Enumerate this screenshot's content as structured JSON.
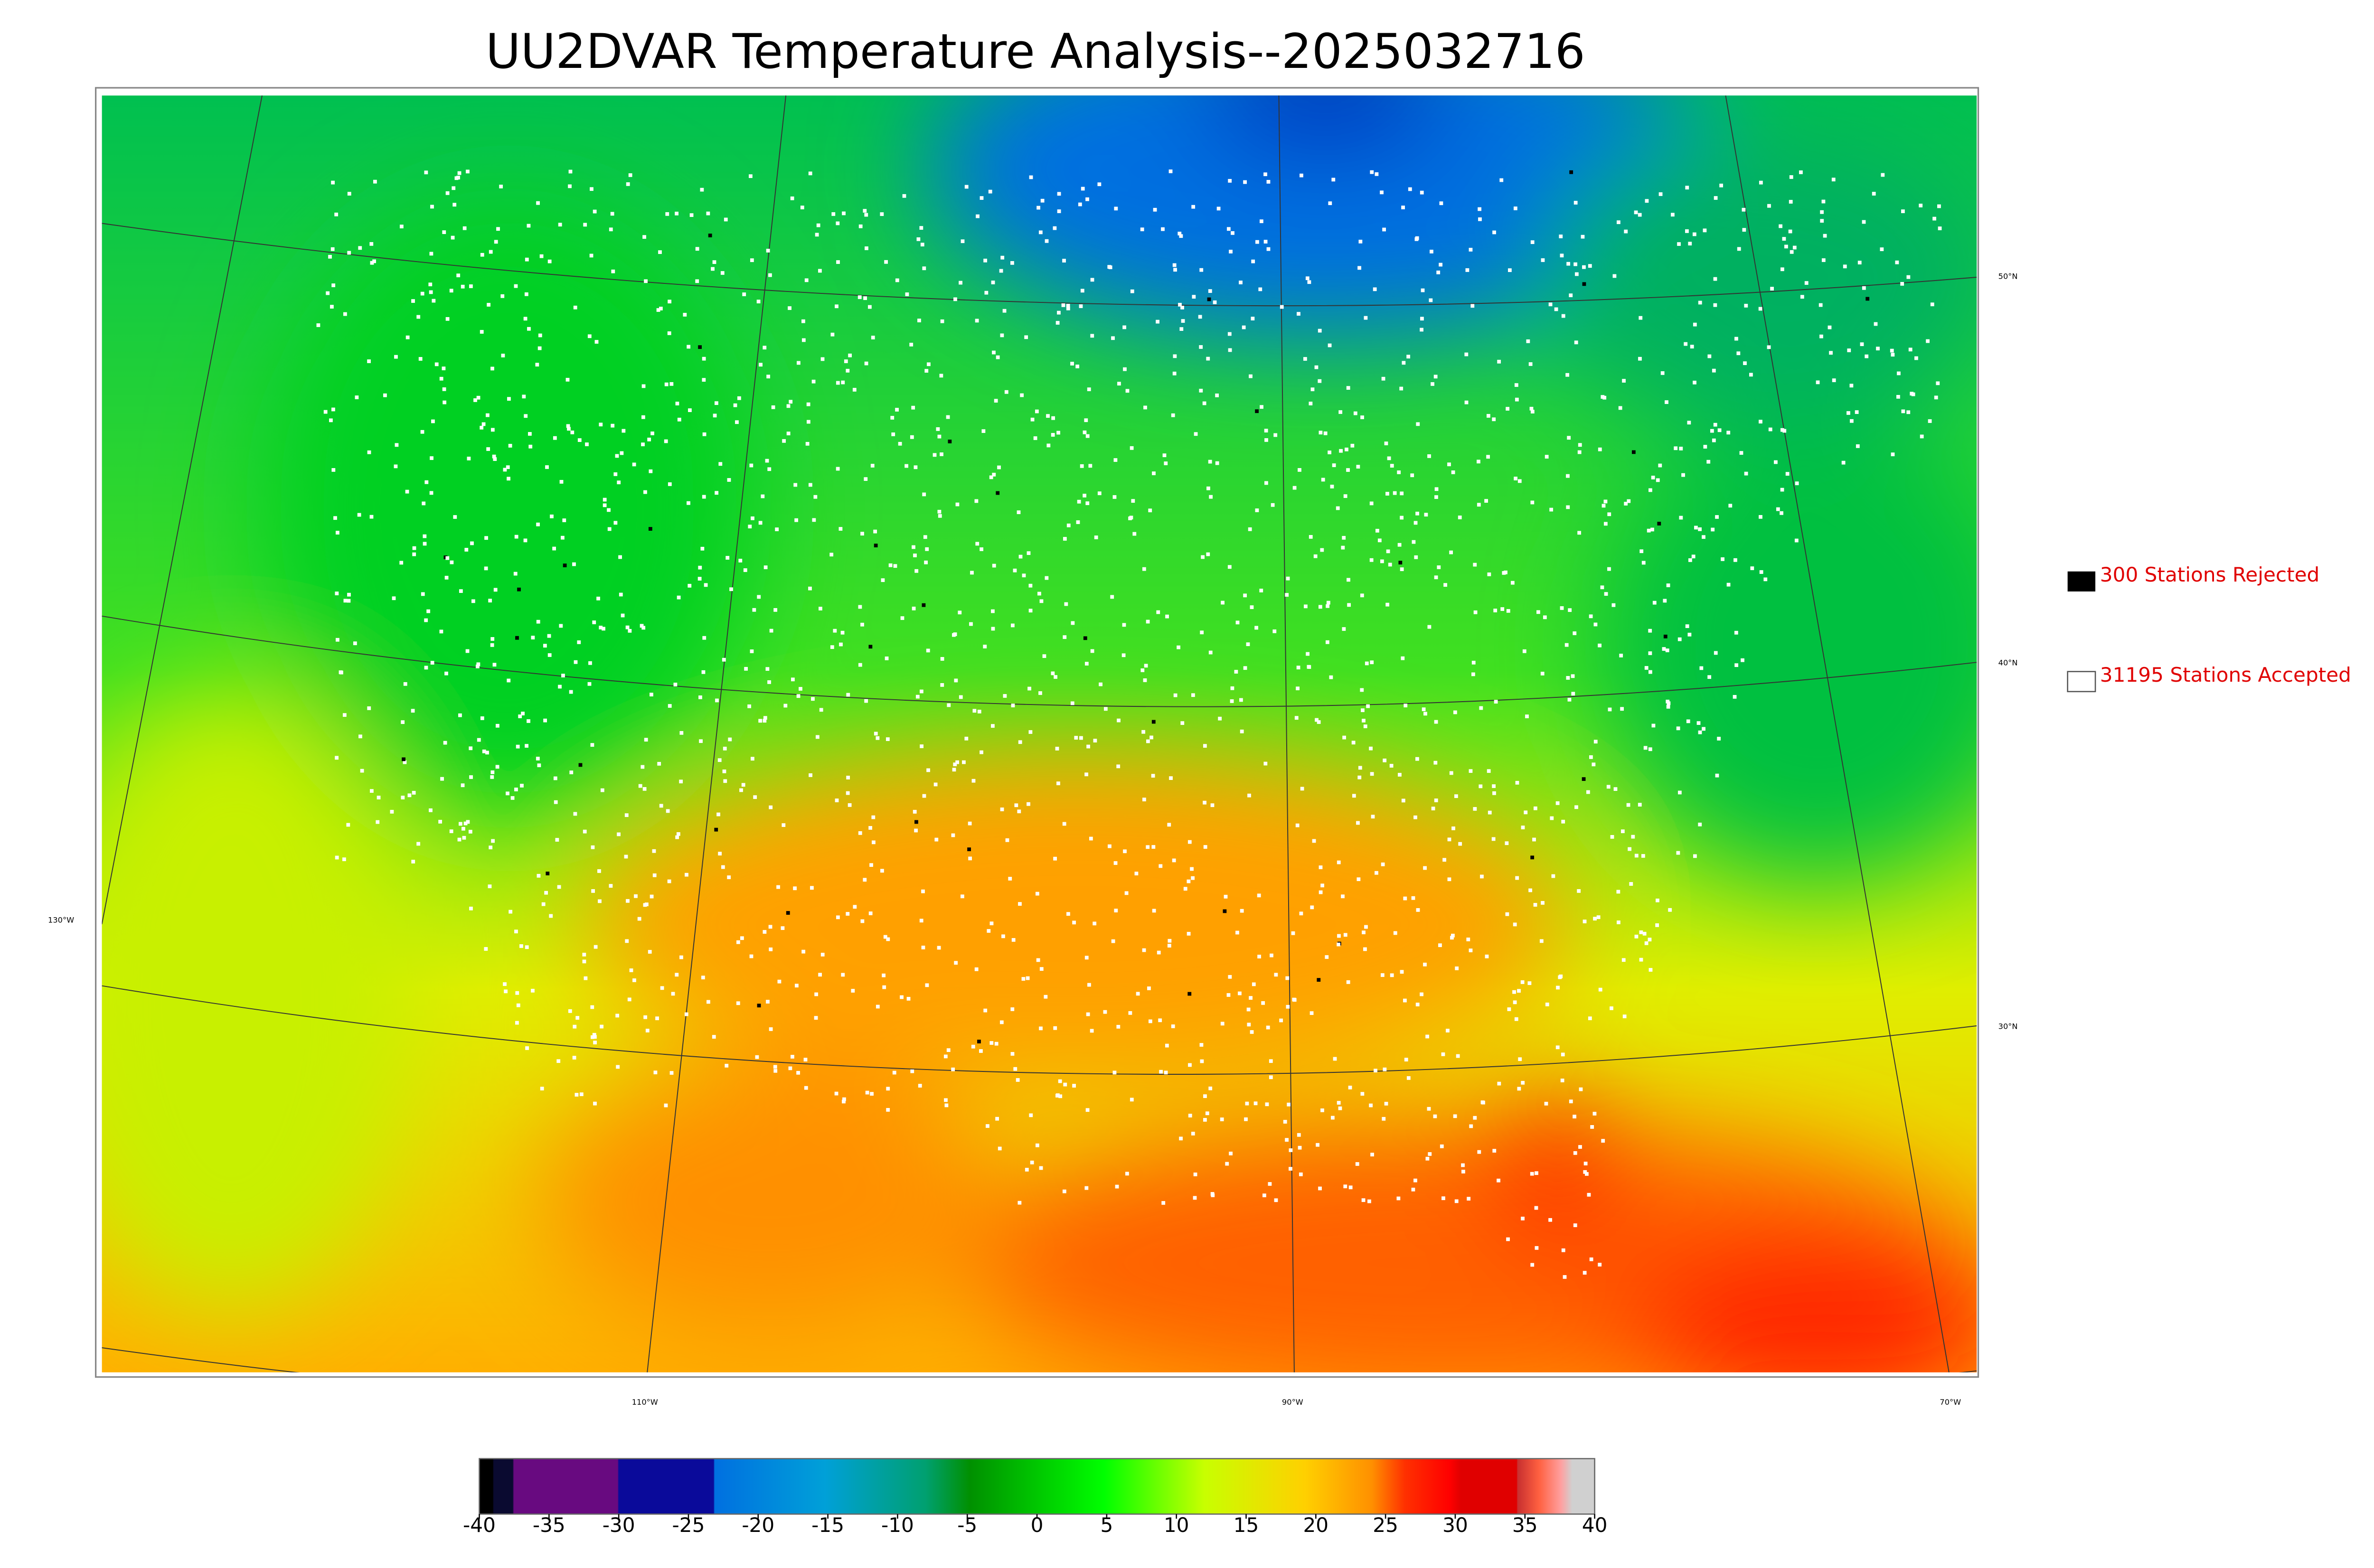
{
  "header": {
    "title": "UU2DVAR Temperature Analysis--2025032716"
  },
  "legend": {
    "rejected": "300 Stations Rejected",
    "accepted": "31195 Stations Accepted"
  },
  "latitude_labels": [
    "50°N",
    "40°N",
    "30°N"
  ],
  "longitude_labels": [
    "130°W",
    "110°W",
    "90°W",
    "70°W"
  ],
  "colorbar": {
    "lim": [
      -40,
      40
    ],
    "ticks": [
      -40,
      -35,
      -30,
      -25,
      -20,
      -15,
      -10,
      -5,
      0,
      5,
      10,
      15,
      20,
      25,
      30,
      35,
      40
    ]
  }
}
